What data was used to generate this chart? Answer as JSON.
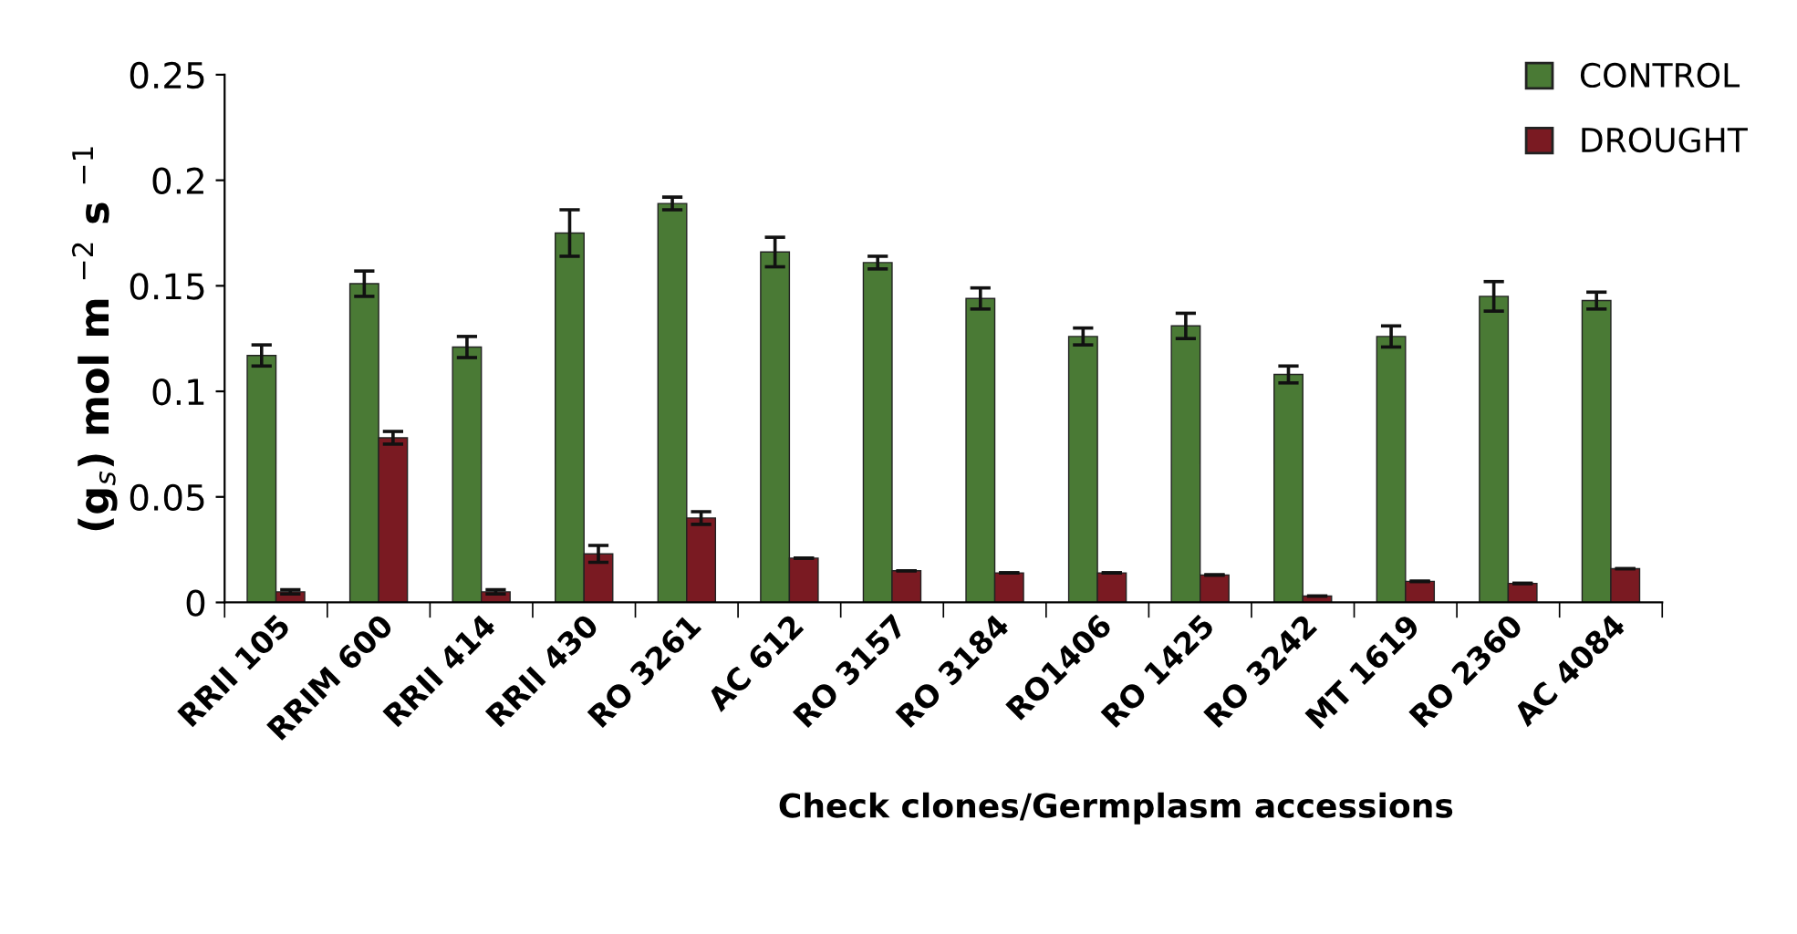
{
  "chart_data": {
    "type": "bar",
    "xlabel": "Check clones/Germplasm accessions",
    "ylabel": "(g$_{s}$) mol m $^{−2}$ s $^{−1}$",
    "categories": [
      "RRII 105",
      "RRIM 600",
      "RRII 414",
      "RRII 430",
      "RO 3261",
      "AC 612",
      "RO 3157",
      "RO 3184",
      "RO1406",
      "RO 1425",
      "RO 3242",
      "MT 1619",
      "RO 2360",
      "AC 4084"
    ],
    "series": [
      {
        "name": "CONTROL",
        "color": "#4a7a35",
        "values": [
          0.117,
          0.151,
          0.121,
          0.175,
          0.189,
          0.166,
          0.161,
          0.144,
          0.126,
          0.131,
          0.108,
          0.126,
          0.145,
          0.143
        ],
        "errors": [
          0.005,
          0.006,
          0.005,
          0.011,
          0.003,
          0.007,
          0.003,
          0.005,
          0.004,
          0.006,
          0.004,
          0.005,
          0.007,
          0.004
        ]
      },
      {
        "name": "DROUGHT",
        "color": "#7a1a22",
        "values": [
          0.005,
          0.078,
          0.005,
          0.023,
          0.04,
          0.021,
          0.015,
          0.014,
          0.014,
          0.013,
          0.003,
          0.01,
          0.009,
          0.016
        ],
        "errors": [
          0.001,
          0.003,
          0.001,
          0.004,
          0.003,
          null,
          null,
          null,
          null,
          null,
          null,
          null,
          null,
          null
        ]
      }
    ],
    "ylim": [
      0,
      0.25
    ],
    "yticks": [
      0,
      0.05,
      0.1,
      0.15,
      0.2,
      0.25
    ],
    "grid": false,
    "legend": "top right"
  }
}
